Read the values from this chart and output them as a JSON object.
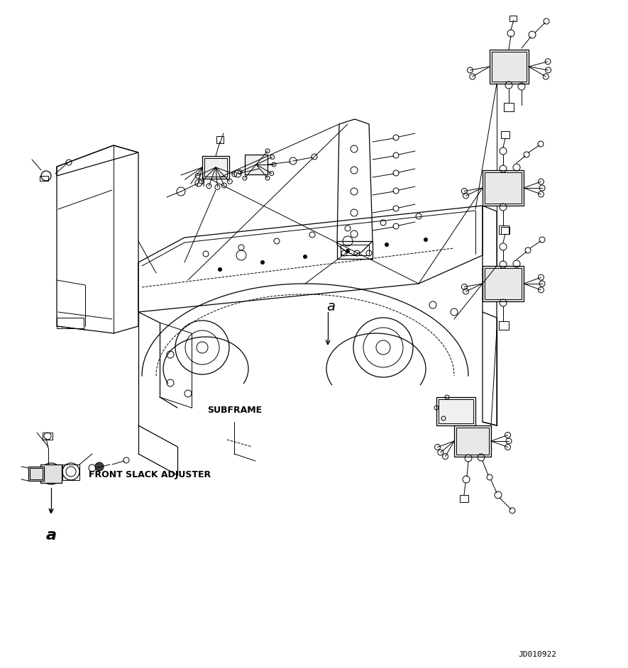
{
  "background_color": "#ffffff",
  "line_color": "#000000",
  "labels": {
    "subframe": {
      "text": "SUBFRAME",
      "fontsize": 9,
      "weight": "bold"
    },
    "front_slack": {
      "text": "FRONT SLACK ADJUSTER",
      "fontsize": 9,
      "weight": "bold"
    },
    "a_bottom": {
      "text": "a",
      "fontsize": 16,
      "style": "italic"
    },
    "a_middle": {
      "text": "a",
      "fontsize": 14,
      "style": "italic"
    },
    "jd_code": {
      "text": "JD010922",
      "fontsize": 8
    }
  },
  "figsize": [
    8.85,
    9.42
  ],
  "dpi": 100
}
